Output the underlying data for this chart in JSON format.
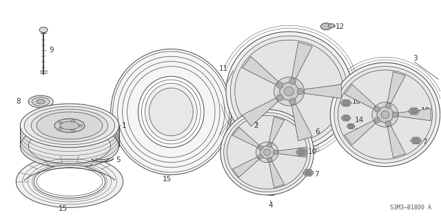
{
  "background_color": "#ffffff",
  "diagram_code": "S3M3–B1800 A",
  "line_color": "#444444",
  "text_color": "#333333",
  "font_size": 7.5,
  "fig_width": 6.4,
  "fig_height": 3.19,
  "dpi": 100
}
